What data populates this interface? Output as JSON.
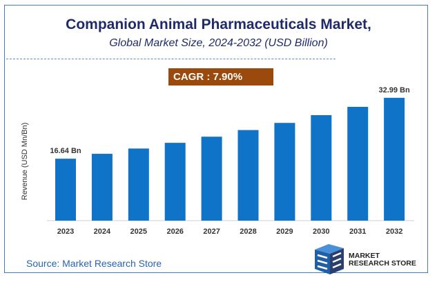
{
  "chart_data": {
    "type": "bar",
    "title": "Companion Animal Pharmaceuticals Market,",
    "subtitle": "Global Market Size, 2024-2032 (USD Billion)",
    "xlabel": "",
    "ylabel": "Revenue (USD Mn/Bn)",
    "categories": [
      "2023",
      "2024",
      "2025",
      "2026",
      "2027",
      "2028",
      "2029",
      "2030",
      "2031",
      "2032"
    ],
    "values": [
      16.64,
      17.95,
      19.37,
      20.9,
      22.55,
      24.33,
      26.25,
      28.33,
      30.56,
      32.99
    ],
    "data_labels": {
      "2023": "16.64 Bn",
      "2032": "32.99 Bn"
    },
    "ylim": [
      0,
      36
    ],
    "grid": false,
    "bar_color": "#0f73c8"
  },
  "cagr": "CAGR : 7.90%",
  "source": "Source: Market Research Store",
  "logo_text": [
    "MARKET",
    "RESEARCH STORE"
  ],
  "colors": {
    "title": "#1f2a6b",
    "cagr_bg": "#9a4a0c",
    "frame": "#3d7cc4"
  }
}
